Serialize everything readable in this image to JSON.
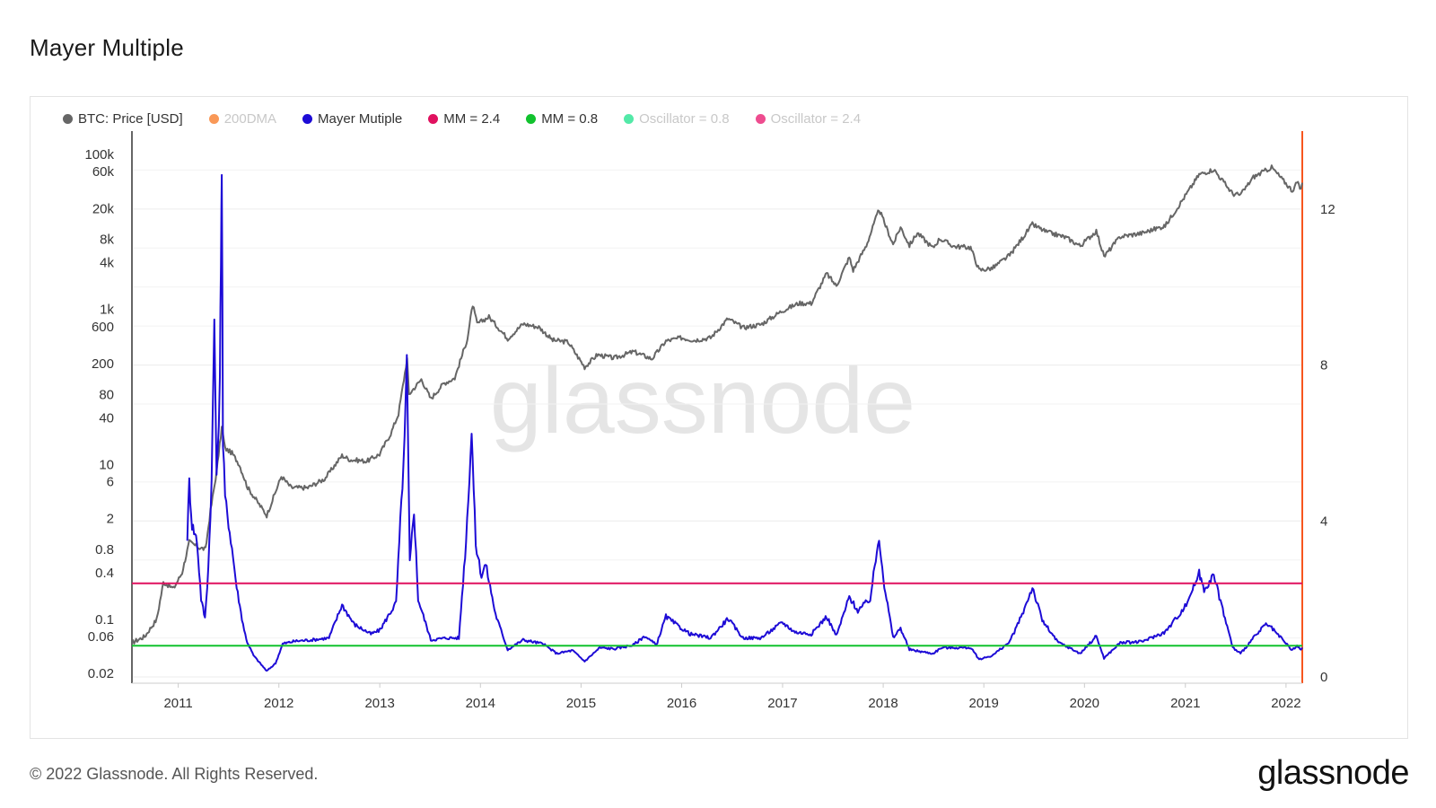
{
  "title": "Mayer Multiple",
  "footer": {
    "copyright": "© 2022 Glassnode. All Rights Reserved.",
    "logo": "glassnode"
  },
  "watermark": "glassnode",
  "legend": [
    {
      "label": "BTC: Price [USD]",
      "color": "#666666",
      "active": true
    },
    {
      "label": "200DMA",
      "color": "#f7761f",
      "active": false
    },
    {
      "label": "Mayer Mutiple",
      "color": "#1d0bd6",
      "active": true
    },
    {
      "label": "MM = 2.4",
      "color": "#e0115f",
      "active": true
    },
    {
      "label": "MM = 0.8",
      "color": "#11c22e",
      "active": true
    },
    {
      "label": "Oscillator = 0.8",
      "color": "#19e28b",
      "active": false
    },
    {
      "label": "Oscillator = 2.4",
      "color": "#e8106a",
      "active": false
    }
  ],
  "chart_data": {
    "type": "line",
    "x_ticks": [
      "2011",
      "2012",
      "2013",
      "2014",
      "2015",
      "2016",
      "2017",
      "2018",
      "2019",
      "2020",
      "2021",
      "2022"
    ],
    "x_range": [
      "2010-07-17",
      "2022-03-01"
    ],
    "y_left": {
      "scale": "log",
      "range": [
        0.015,
        200000
      ],
      "tick_labels": [
        "100k",
        "60k",
        "20k",
        "8k",
        "4k",
        "1k",
        "600",
        "200",
        "80",
        "40",
        "10",
        "6",
        "2",
        "0.8",
        "0.4",
        "0.1",
        "0.06",
        "0.02"
      ],
      "tick_values": [
        100000,
        60000,
        20000,
        8000,
        4000,
        1000,
        600,
        200,
        80,
        40,
        10,
        6,
        2,
        0.8,
        0.4,
        0.1,
        0.06,
        0.02
      ]
    },
    "y_right": {
      "scale": "linear",
      "range": [
        0,
        14
      ],
      "tick_labels": [
        "12",
        "8",
        "4",
        "0"
      ],
      "tick_values": [
        12,
        8,
        4,
        0
      ]
    },
    "series": [
      {
        "name": "BTC: Price [USD]",
        "axis": "left",
        "color": "#666666",
        "points": [
          [
            "2010-07-17",
            0.05
          ],
          [
            "2010-09-01",
            0.06
          ],
          [
            "2010-10-15",
            0.1
          ],
          [
            "2010-11-08",
            0.3
          ],
          [
            "2010-12-15",
            0.25
          ],
          [
            "2011-01-15",
            0.4
          ],
          [
            "2011-02-10",
            1.0
          ],
          [
            "2011-03-15",
            0.85
          ],
          [
            "2011-04-10",
            0.8
          ],
          [
            "2011-04-28",
            2.5
          ],
          [
            "2011-05-20",
            8
          ],
          [
            "2011-06-08",
            30
          ],
          [
            "2011-06-20",
            16
          ],
          [
            "2011-07-15",
            14
          ],
          [
            "2011-08-10",
            10
          ],
          [
            "2011-09-10",
            5
          ],
          [
            "2011-10-10",
            3.5
          ],
          [
            "2011-11-18",
            2.2
          ],
          [
            "2012-01-10",
            7
          ],
          [
            "2012-02-15",
            5
          ],
          [
            "2012-04-15",
            5
          ],
          [
            "2012-06-15",
            6.5
          ],
          [
            "2012-08-17",
            13
          ],
          [
            "2012-09-15",
            11.5
          ],
          [
            "2012-11-15",
            11
          ],
          [
            "2012-12-31",
            13.5
          ],
          [
            "2013-02-10",
            25
          ],
          [
            "2013-03-10",
            45
          ],
          [
            "2013-04-10",
            230
          ],
          [
            "2013-04-17",
            80
          ],
          [
            "2013-06-01",
            125
          ],
          [
            "2013-07-05",
            70
          ],
          [
            "2013-08-20",
            110
          ],
          [
            "2013-09-30",
            130
          ],
          [
            "2013-11-15",
            420
          ],
          [
            "2013-12-04",
            1150
          ],
          [
            "2013-12-20",
            650
          ],
          [
            "2014-02-01",
            800
          ],
          [
            "2014-04-10",
            420
          ],
          [
            "2014-06-05",
            650
          ],
          [
            "2014-08-01",
            590
          ],
          [
            "2014-09-20",
            400
          ],
          [
            "2014-11-15",
            380
          ],
          [
            "2015-01-14",
            180
          ],
          [
            "2015-03-01",
            260
          ],
          [
            "2015-05-01",
            235
          ],
          [
            "2015-07-10",
            285
          ],
          [
            "2015-09-15",
            230
          ],
          [
            "2015-11-05",
            390
          ],
          [
            "2015-12-31",
            430
          ],
          [
            "2016-02-15",
            400
          ],
          [
            "2016-04-15",
            430
          ],
          [
            "2016-06-17",
            760
          ],
          [
            "2016-08-10",
            580
          ],
          [
            "2016-10-15",
            640
          ],
          [
            "2016-12-31",
            960
          ],
          [
            "2017-03-01",
            1200
          ],
          [
            "2017-04-15",
            1200
          ],
          [
            "2017-06-10",
            2900
          ],
          [
            "2017-07-15",
            2000
          ],
          [
            "2017-08-31",
            4700
          ],
          [
            "2017-09-14",
            3200
          ],
          [
            "2017-11-01",
            6700
          ],
          [
            "2017-12-17",
            19500
          ],
          [
            "2018-02-06",
            6900
          ],
          [
            "2018-03-05",
            11500
          ],
          [
            "2018-04-06",
            6700
          ],
          [
            "2018-05-05",
            9700
          ],
          [
            "2018-06-30",
            6200
          ],
          [
            "2018-07-25",
            8200
          ],
          [
            "2018-09-15",
            6500
          ],
          [
            "2018-11-14",
            6300
          ],
          [
            "2018-12-15",
            3200
          ],
          [
            "2019-02-01",
            3400
          ],
          [
            "2019-04-05",
            5000
          ],
          [
            "2019-06-26",
            12500
          ],
          [
            "2019-08-15",
            10000
          ],
          [
            "2019-10-25",
            8500
          ],
          [
            "2019-12-17",
            6600
          ],
          [
            "2020-02-13",
            10300
          ],
          [
            "2020-03-12",
            4800
          ],
          [
            "2020-05-10",
            8700
          ],
          [
            "2020-07-25",
            9600
          ],
          [
            "2020-10-20",
            12000
          ],
          [
            "2020-12-31",
            29000
          ],
          [
            "2021-02-20",
            55000
          ],
          [
            "2021-04-14",
            64000
          ],
          [
            "2021-06-22",
            31000
          ],
          [
            "2021-07-20",
            30000
          ],
          [
            "2021-09-05",
            51000
          ],
          [
            "2021-11-10",
            68000
          ],
          [
            "2022-01-24",
            34000
          ],
          [
            "2022-02-10",
            44000
          ],
          [
            "2022-02-24",
            35000
          ],
          [
            "2022-03-01",
            43000
          ]
        ]
      },
      {
        "name": "Mayer Mutiple",
        "axis": "right",
        "color": "#1d0bd6",
        "points": [
          [
            "2011-02-03",
            3.6
          ],
          [
            "2011-02-10",
            5.0
          ],
          [
            "2011-02-20",
            3.9
          ],
          [
            "2011-03-10",
            3.5
          ],
          [
            "2011-03-25",
            2.0
          ],
          [
            "2011-04-08",
            1.5
          ],
          [
            "2011-04-20",
            2.8
          ],
          [
            "2011-05-02",
            5.0
          ],
          [
            "2011-05-12",
            9.2
          ],
          [
            "2011-05-20",
            5.0
          ],
          [
            "2011-06-01",
            7.5
          ],
          [
            "2011-06-05",
            11.0
          ],
          [
            "2011-06-08",
            13.2
          ],
          [
            "2011-06-12",
            6.0
          ],
          [
            "2011-06-20",
            4.6
          ],
          [
            "2011-07-15",
            3.3
          ],
          [
            "2011-08-01",
            2.3
          ],
          [
            "2011-08-20",
            1.5
          ],
          [
            "2011-09-05",
            0.95
          ],
          [
            "2011-10-01",
            0.55
          ],
          [
            "2011-11-18",
            0.15
          ],
          [
            "2011-12-20",
            0.35
          ],
          [
            "2012-01-15",
            0.85
          ],
          [
            "2012-03-01",
            0.92
          ],
          [
            "2012-05-01",
            0.95
          ],
          [
            "2012-07-01",
            1.0
          ],
          [
            "2012-08-17",
            1.85
          ],
          [
            "2012-09-30",
            1.35
          ],
          [
            "2012-11-30",
            1.1
          ],
          [
            "2013-01-01",
            1.2
          ],
          [
            "2013-03-01",
            1.9
          ],
          [
            "2013-04-01",
            6.0
          ],
          [
            "2013-04-09",
            8.1
          ],
          [
            "2013-04-20",
            2.9
          ],
          [
            "2013-05-05",
            4.3
          ],
          [
            "2013-05-20",
            2.0
          ],
          [
            "2013-07-05",
            0.95
          ],
          [
            "2013-09-01",
            1.0
          ],
          [
            "2013-10-15",
            1.0
          ],
          [
            "2013-11-10",
            3.5
          ],
          [
            "2013-11-30",
            6.3
          ],
          [
            "2013-12-15",
            3.4
          ],
          [
            "2014-01-05",
            2.6
          ],
          [
            "2014-01-20",
            2.9
          ],
          [
            "2014-02-25",
            1.6
          ],
          [
            "2014-04-10",
            0.7
          ],
          [
            "2014-06-05",
            0.95
          ],
          [
            "2014-08-15",
            0.85
          ],
          [
            "2014-10-05",
            0.6
          ],
          [
            "2014-12-01",
            0.68
          ],
          [
            "2015-01-14",
            0.4
          ],
          [
            "2015-03-10",
            0.75
          ],
          [
            "2015-05-01",
            0.72
          ],
          [
            "2015-07-10",
            0.82
          ],
          [
            "2015-08-20",
            1.05
          ],
          [
            "2015-10-01",
            0.82
          ],
          [
            "2015-11-05",
            1.55
          ],
          [
            "2015-12-20",
            1.3
          ],
          [
            "2016-02-01",
            1.1
          ],
          [
            "2016-04-15",
            1.0
          ],
          [
            "2016-06-17",
            1.5
          ],
          [
            "2016-08-10",
            1.0
          ],
          [
            "2016-10-15",
            1.0
          ],
          [
            "2016-12-31",
            1.4
          ],
          [
            "2017-02-15",
            1.15
          ],
          [
            "2017-04-15",
            1.1
          ],
          [
            "2017-06-10",
            1.55
          ],
          [
            "2017-07-15",
            1.05
          ],
          [
            "2017-08-31",
            2.05
          ],
          [
            "2017-10-01",
            1.7
          ],
          [
            "2017-11-15",
            2.0
          ],
          [
            "2017-12-17",
            3.6
          ],
          [
            "2018-01-05",
            2.35
          ],
          [
            "2018-02-06",
            1.0
          ],
          [
            "2018-03-05",
            1.25
          ],
          [
            "2018-04-06",
            0.7
          ],
          [
            "2018-06-30",
            0.6
          ],
          [
            "2018-08-01",
            0.75
          ],
          [
            "2018-10-01",
            0.75
          ],
          [
            "2018-11-14",
            0.75
          ],
          [
            "2018-12-15",
            0.45
          ],
          [
            "2019-02-01",
            0.55
          ],
          [
            "2019-04-05",
            0.9
          ],
          [
            "2019-05-20",
            1.6
          ],
          [
            "2019-06-26",
            2.3
          ],
          [
            "2019-08-01",
            1.45
          ],
          [
            "2019-09-25",
            0.9
          ],
          [
            "2019-12-17",
            0.6
          ],
          [
            "2020-02-13",
            1.05
          ],
          [
            "2020-03-12",
            0.48
          ],
          [
            "2020-05-10",
            0.88
          ],
          [
            "2020-07-25",
            0.9
          ],
          [
            "2020-10-20",
            1.15
          ],
          [
            "2020-12-31",
            1.8
          ],
          [
            "2021-02-20",
            2.65
          ],
          [
            "2021-03-10",
            2.25
          ],
          [
            "2021-04-14",
            2.6
          ],
          [
            "2021-06-22",
            0.75
          ],
          [
            "2021-07-20",
            0.6
          ],
          [
            "2021-09-05",
            1.0
          ],
          [
            "2021-10-20",
            1.35
          ],
          [
            "2021-11-10",
            1.25
          ],
          [
            "2022-01-24",
            0.68
          ],
          [
            "2022-02-10",
            0.8
          ],
          [
            "2022-02-24",
            0.68
          ],
          [
            "2022-03-01",
            0.75
          ]
        ]
      },
      {
        "name": "MM = 2.4",
        "axis": "right",
        "color": "#e0115f",
        "constant": 2.4
      },
      {
        "name": "MM = 0.8",
        "axis": "right",
        "color": "#11c22e",
        "constant": 0.8
      }
    ],
    "grid": true,
    "legend_position": "top-left"
  }
}
